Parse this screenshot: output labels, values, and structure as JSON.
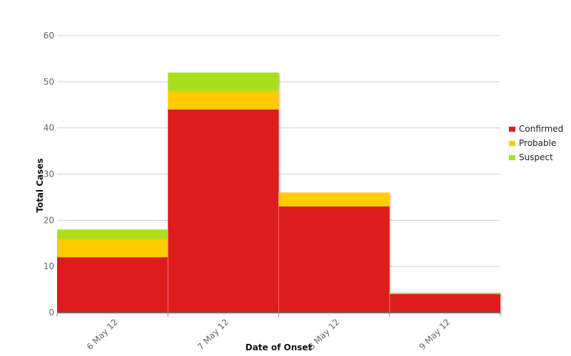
{
  "chart_data": {
    "type": "bar",
    "stacked": true,
    "categories": [
      "6 May 12",
      "7 May 12",
      "8 May 12",
      "9 May 12"
    ],
    "series": [
      {
        "name": "Confirmed",
        "values": [
          12,
          44,
          23,
          4
        ],
        "color": "#dd1c1e"
      },
      {
        "name": "Probable",
        "values": [
          4,
          4,
          3,
          0
        ],
        "color": "#ffcc00"
      },
      {
        "name": "Suspect",
        "values": [
          2,
          4,
          0,
          0.3
        ],
        "color": "#a8e01c"
      }
    ],
    "title": "",
    "xlabel": "Date of Onset",
    "ylabel": "Total Cases",
    "ylim": [
      0,
      60
    ],
    "yticks": [
      0,
      10,
      20,
      30,
      40,
      50,
      60
    ],
    "grid": true,
    "legend_position": "right"
  }
}
